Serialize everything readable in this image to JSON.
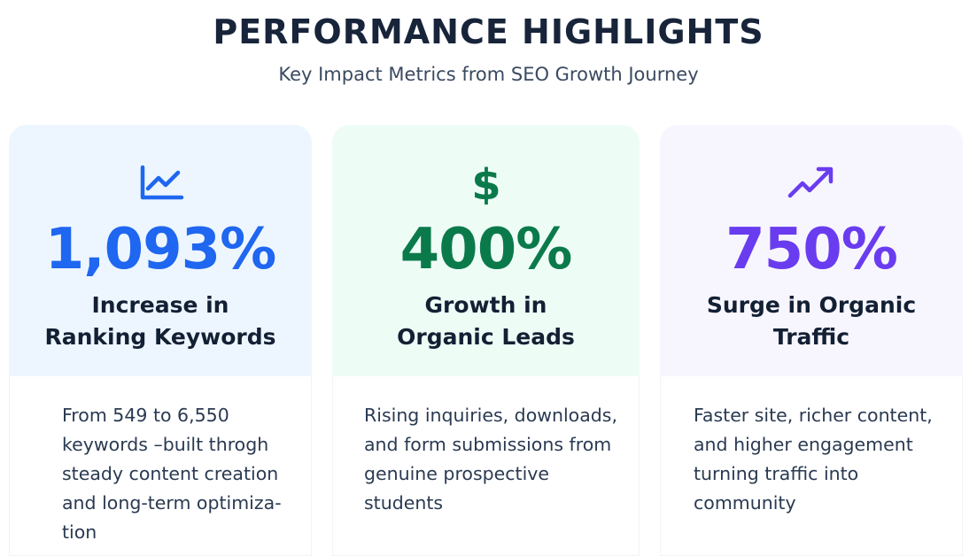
{
  "header": {
    "title": "PERFORMANCE HIGHLIGHTS",
    "subtitle": "Key Impact Metrics from SEO Growth Journey"
  },
  "cards": [
    {
      "icon": "line-chart-icon",
      "color": "#1f66f0",
      "background": "#edf6fe",
      "value": "1,093%",
      "label": "Increase in\nRanking Keywords",
      "description": "From 549 to 6,550\nkeywords –built throgh\nsteady content creation\nand long-term optimiza-\ntion"
    },
    {
      "icon": "dollar-icon",
      "color": "#0b7a4b",
      "background": "#eefcf6",
      "value": "400%",
      "label": "Growth in\nOrganic Leads",
      "description": "Rising inquiries, downloads,\nand form submissions from\ngenuine prospective\nstudents"
    },
    {
      "icon": "trending-up-icon",
      "color": "#6a3cf0",
      "background": "#f7f6fe",
      "value": "750%",
      "label": "Surge in Organic\nTraffic",
      "description": "Faster site, richer content,\nand higher engagement\nturning traffic into\ncommunity"
    }
  ]
}
